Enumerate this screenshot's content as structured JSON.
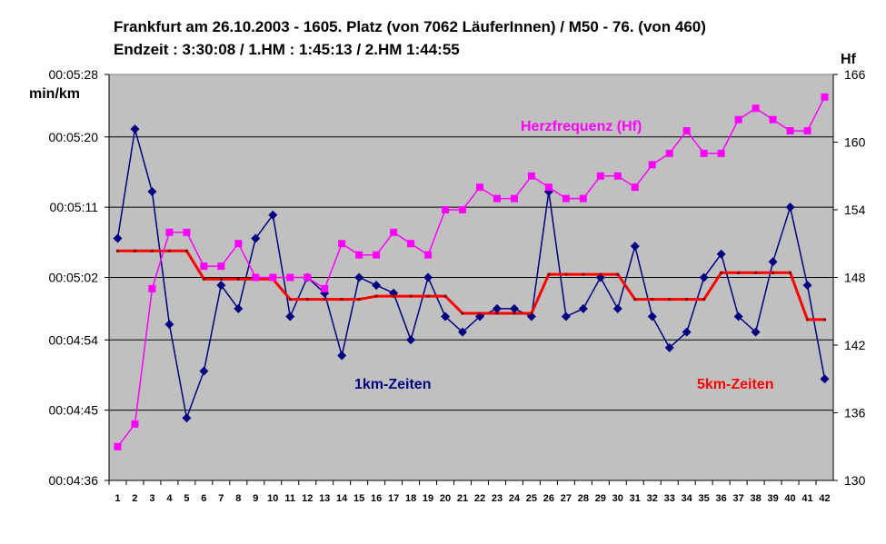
{
  "chart_data": {
    "type": "line",
    "title_line1": "Frankfurt am 26.10.2003 - 1605. Platz (von 7062 LäuferInnen) / M50 - 76. (von 460)",
    "title_line2": "Endzeit : 3:30:08  / 1.HM : 1:45:13  / 2.HM  1:44:55",
    "ylabel_left": "min/km",
    "ylabel_right": "Hf",
    "x": [
      1,
      2,
      3,
      4,
      5,
      6,
      7,
      8,
      9,
      10,
      11,
      12,
      13,
      14,
      15,
      16,
      17,
      18,
      19,
      20,
      21,
      22,
      23,
      24,
      25,
      26,
      27,
      28,
      29,
      30,
      31,
      32,
      33,
      34,
      35,
      36,
      37,
      38,
      39,
      40,
      41,
      42
    ],
    "x_tick_labels": [
      "1",
      "2",
      "3",
      "4",
      "5",
      "6",
      "7",
      "8",
      "9",
      "10",
      "11",
      "12",
      "13",
      "14",
      "15",
      "16",
      "17",
      "18",
      "19",
      "20",
      "21",
      "22",
      "23",
      "24",
      "25",
      "26",
      "27",
      "28",
      "29",
      "30",
      "31",
      "32",
      "33",
      "34",
      "35",
      "36",
      "37",
      "38",
      "39",
      "40",
      "41",
      "42"
    ],
    "y_left_ticks": [
      "00:04:36",
      "00:04:45",
      "00:04:54",
      "00:05:02",
      "00:05:11",
      "00:05:20",
      "00:05:28"
    ],
    "y_left_tick_seconds": [
      276,
      285,
      294,
      302,
      311,
      320,
      328
    ],
    "y_left_unit": "seconds per km",
    "ylim_left": [
      276,
      328
    ],
    "y_right_ticks": [
      "130",
      "136",
      "142",
      "148",
      "154",
      "160",
      "166"
    ],
    "ylim_right": [
      130,
      166
    ],
    "grid": true,
    "background_color": "#c0c0c0",
    "series": [
      {
        "name": "1km-Zeiten",
        "axis": "left",
        "color": "#000080",
        "marker": "diamond",
        "values": [
          307,
          321,
          313,
          296,
          284,
          290,
          301,
          298,
          307,
          310,
          297,
          302,
          300,
          292,
          302,
          301,
          300,
          294,
          302,
          297,
          295,
          297,
          298,
          298,
          297,
          313,
          297,
          298,
          302,
          298,
          306,
          297,
          293,
          295,
          302,
          305,
          297,
          295,
          304,
          311,
          301,
          289
        ]
      },
      {
        "name": "5km-Zeiten",
        "axis": "left",
        "color": "#ff0000",
        "marker": "small-square",
        "values": [
          305.4,
          305.4,
          305.4,
          305.4,
          305.4,
          301.8,
          301.8,
          301.8,
          301.8,
          301.8,
          299.2,
          299.2,
          299.2,
          299.2,
          299.2,
          299.6,
          299.6,
          299.6,
          299.6,
          299.6,
          297.4,
          297.4,
          297.4,
          297.4,
          297.4,
          302.4,
          302.4,
          302.4,
          302.4,
          302.4,
          299.2,
          299.2,
          299.2,
          299.2,
          299.2,
          302.6,
          302.6,
          302.6,
          302.6,
          302.6,
          296.6,
          296.6
        ]
      },
      {
        "name": "Herzfrequenz (Hf)",
        "axis": "right",
        "color": "#ff00ff",
        "marker": "square",
        "values": [
          133,
          135,
          147,
          152,
          152,
          149,
          149,
          151,
          148,
          148,
          148,
          148,
          147,
          151,
          150,
          150,
          152,
          151,
          150,
          154,
          154,
          156,
          155,
          155,
          157,
          156,
          155,
          155,
          157,
          157,
          156,
          158,
          159,
          161,
          159,
          159,
          162,
          163,
          162,
          161,
          161,
          164
        ]
      }
    ]
  }
}
